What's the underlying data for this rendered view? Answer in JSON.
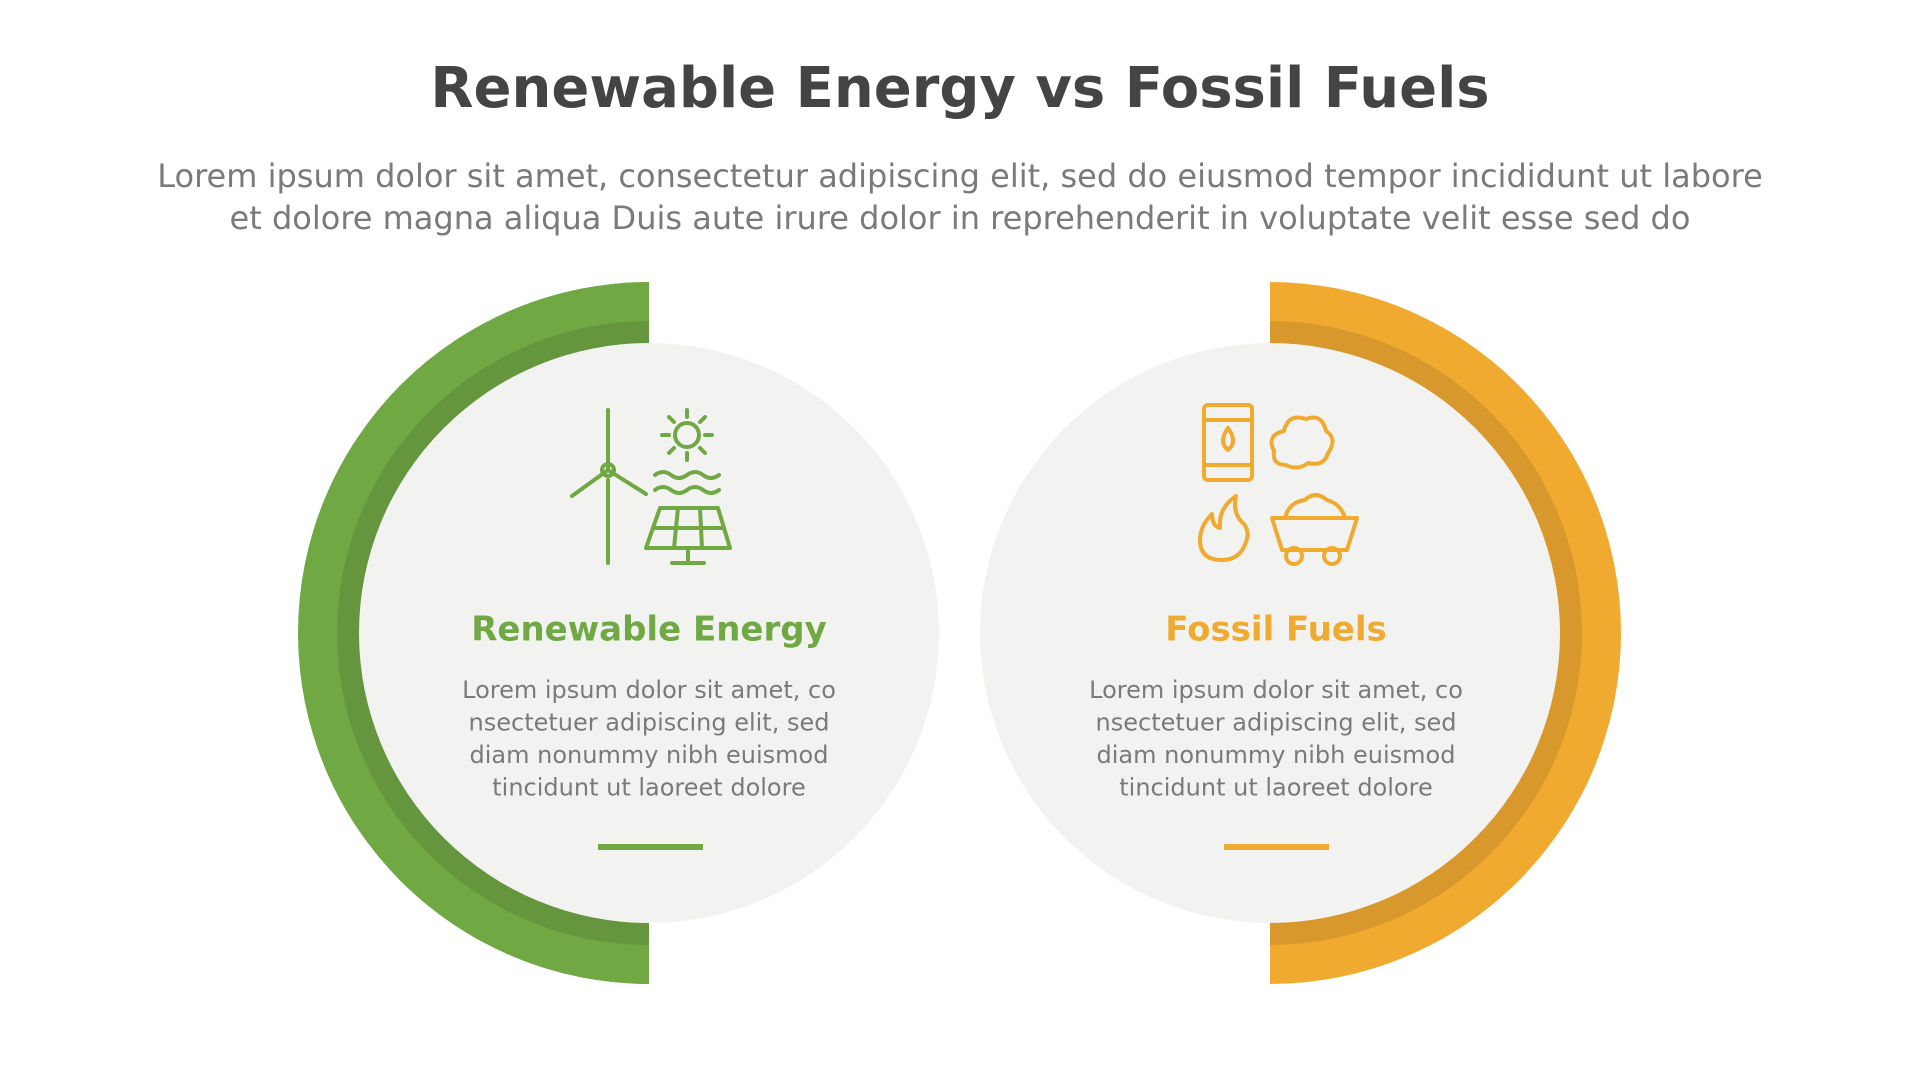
{
  "header": {
    "title": "Renewable Energy vs Fossil Fuels",
    "subtitle": [
      "Lorem ipsum dolor sit amet, consectetur adipiscing elit, sed do eiusmod tempor incididunt ut labore",
      "et dolore magna aliqua Duis aute irure dolor in reprehenderit in voluptate velit esse sed do"
    ]
  },
  "panels": [
    {
      "title": "Renewable Energy",
      "body": [
        "Lorem ipsum dolor sit amet, co",
        "nsectetuer adipiscing elit, sed",
        "diam nonummy nibh euismod",
        "tincidunt ut laoreet dolore"
      ]
    },
    {
      "title": "Fossil Fuels",
      "body": [
        "Lorem ipsum dolor sit amet, co",
        "nsectetuer adipiscing elit, sed",
        "diam nonummy nibh euismod",
        "tincidunt ut laoreet dolore"
      ]
    }
  ]
}
